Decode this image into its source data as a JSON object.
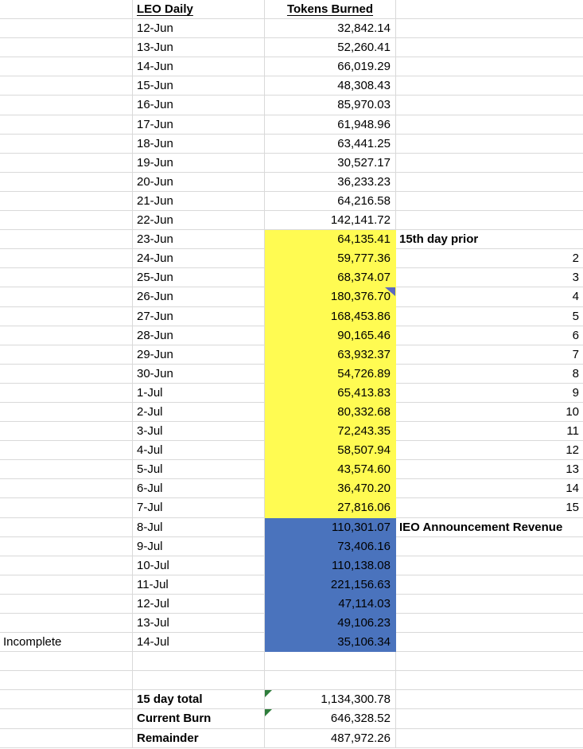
{
  "colors": {
    "grid_line": "#d9d9d9",
    "highlight_yellow": "#fffb52",
    "highlight_blue": "#4a73bd",
    "comment_indicator": "#5b68c0",
    "error_indicator": "#2e7d3b"
  },
  "rows": [
    {
      "b": "LEO Daily",
      "c": "Tokens Burned",
      "header": true
    },
    {
      "b": "12-Jun",
      "c": "32,842.14"
    },
    {
      "b": "13-Jun",
      "c": "52,260.41"
    },
    {
      "b": "14-Jun",
      "c": "66,019.29"
    },
    {
      "b": "15-Jun",
      "c": "48,308.43"
    },
    {
      "b": "16-Jun",
      "c": "85,970.03"
    },
    {
      "b": "17-Jun",
      "c": "61,948.96"
    },
    {
      "b": "18-Jun",
      "c": "63,441.25"
    },
    {
      "b": "19-Jun",
      "c": "30,527.17"
    },
    {
      "b": "20-Jun",
      "c": "36,233.23"
    },
    {
      "b": "21-Jun",
      "c": "64,216.58"
    },
    {
      "b": "22-Jun",
      "c": "142,141.72"
    },
    {
      "b": "23-Jun",
      "c": "64,135.41",
      "fill": "yellow",
      "d": "15th day prior",
      "d_bold": true
    },
    {
      "b": "24-Jun",
      "c": "59,777.36",
      "fill": "yellow",
      "d": "2",
      "d_num": true
    },
    {
      "b": "25-Jun",
      "c": "68,374.07",
      "fill": "yellow",
      "d": "3",
      "d_num": true
    },
    {
      "b": "26-Jun",
      "c": "180,376.70",
      "fill": "yellow",
      "comment": true,
      "d": "4",
      "d_num": true
    },
    {
      "b": "27-Jun",
      "c": "168,453.86",
      "fill": "yellow",
      "d": "5",
      "d_num": true
    },
    {
      "b": "28-Jun",
      "c": "90,165.46",
      "fill": "yellow",
      "d": "6",
      "d_num": true
    },
    {
      "b": "29-Jun",
      "c": "63,932.37",
      "fill": "yellow",
      "d": "7",
      "d_num": true
    },
    {
      "b": "30-Jun",
      "c": "54,726.89",
      "fill": "yellow",
      "d": "8",
      "d_num": true
    },
    {
      "b": "1-Jul",
      "c": "65,413.83",
      "fill": "yellow",
      "d": "9",
      "d_num": true
    },
    {
      "b": "2-Jul",
      "c": "80,332.68",
      "fill": "yellow",
      "d": "10",
      "d_num": true
    },
    {
      "b": "3-Jul",
      "c": "72,243.35",
      "fill": "yellow",
      "d": "11",
      "d_num": true
    },
    {
      "b": "4-Jul",
      "c": "58,507.94",
      "fill": "yellow",
      "d": "12",
      "d_num": true
    },
    {
      "b": "5-Jul",
      "c": "43,574.60",
      "fill": "yellow",
      "d": "13",
      "d_num": true
    },
    {
      "b": "6-Jul",
      "c": "36,470.20",
      "fill": "yellow",
      "d": "14",
      "d_num": true
    },
    {
      "b": "7-Jul",
      "c": "27,816.06",
      "fill": "yellow",
      "d": "15",
      "d_num": true
    },
    {
      "b": "8-Jul",
      "c": "110,301.07",
      "fill": "blue",
      "d": "IEO Announcement Revenue",
      "d_bold": true
    },
    {
      "b": "9-Jul",
      "c": "73,406.16",
      "fill": "blue"
    },
    {
      "b": "10-Jul",
      "c": "110,138.08",
      "fill": "blue"
    },
    {
      "b": "11-Jul",
      "c": "221,156.63",
      "fill": "blue"
    },
    {
      "b": "12-Jul",
      "c": "47,114.03",
      "fill": "blue"
    },
    {
      "b": "13-Jul",
      "c": "49,106.23",
      "fill": "blue"
    },
    {
      "a": "Incomplete",
      "b": "14-Jul",
      "c": "35,106.34",
      "fill": "blue"
    },
    {},
    {},
    {
      "b": "15 day total",
      "b_bold": true,
      "c": "1,134,300.78",
      "error": true
    },
    {
      "b": "Current Burn",
      "b_bold": true,
      "c": "646,328.52",
      "error": true
    },
    {
      "b": "Remainder",
      "b_bold": true,
      "c": "487,972.26"
    }
  ]
}
